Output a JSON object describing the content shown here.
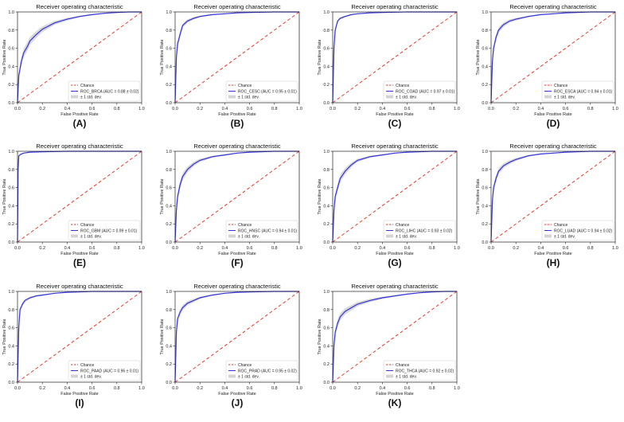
{
  "figure": {
    "panel_count": 11
  },
  "chart_data": [
    {
      "panel_label": "(A)",
      "type": "line",
      "title": "Receiver operating characteristic",
      "xlabel": "False Positive Rate",
      "ylabel": "True Positive Rate",
      "xlim": [
        0,
        1
      ],
      "ylim": [
        0,
        1
      ],
      "xticks": [
        "0.0",
        "0.2",
        "0.4",
        "0.6",
        "0.8",
        "1.0"
      ],
      "yticks": [
        "0.0",
        "0.2",
        "0.4",
        "0.6",
        "0.8",
        "1.0"
      ],
      "legend_position": "lower-right",
      "legend": [
        "Chance",
        "ROC_BRCA (AUC = 0.88 ± 0.02)",
        "± 1 std. dev."
      ],
      "colors": {
        "roc": "#3333dd",
        "chance": "#e63c2c",
        "band": "#d4d4d4"
      },
      "series": [
        {
          "name": "ROC_BRCA (AUC = 0.88 ± 0.02)",
          "x": [
            0,
            0.01,
            0.03,
            0.05,
            0.08,
            0.1,
            0.15,
            0.2,
            0.3,
            0.4,
            0.5,
            0.6,
            0.7,
            0.8,
            0.9,
            1
          ],
          "y": [
            0,
            0.3,
            0.45,
            0.55,
            0.62,
            0.68,
            0.75,
            0.81,
            0.88,
            0.92,
            0.95,
            0.97,
            0.985,
            0.995,
            1,
            1
          ]
        },
        {
          "name": "Chance",
          "x": [
            0,
            1
          ],
          "y": [
            0,
            1
          ]
        }
      ]
    },
    {
      "panel_label": "(B)",
      "type": "line",
      "title": "Receiver operating characteristic",
      "xlabel": "False Positive Rate",
      "ylabel": "True Positive Rate",
      "xlim": [
        0,
        1
      ],
      "ylim": [
        0,
        1
      ],
      "xticks": [
        "0.0",
        "0.2",
        "0.4",
        "0.6",
        "0.8",
        "1.0"
      ],
      "yticks": [
        "0.0",
        "0.2",
        "0.4",
        "0.6",
        "0.8",
        "1.0"
      ],
      "legend_position": "lower-right",
      "legend": [
        "Chance",
        "ROC_CESC (AUC = 0.95 ± 0.01)",
        "± 1 std. dev."
      ],
      "colors": {
        "roc": "#3333dd",
        "chance": "#e63c2c",
        "band": "#d4d4d4"
      },
      "series": [
        {
          "name": "ROC_CESC (AUC = 0.95 ± 0.01)",
          "x": [
            0,
            0.01,
            0.02,
            0.04,
            0.06,
            0.1,
            0.15,
            0.2,
            0.3,
            0.4,
            0.5,
            0.6,
            0.8,
            1
          ],
          "y": [
            0,
            0.5,
            0.65,
            0.75,
            0.85,
            0.9,
            0.93,
            0.95,
            0.97,
            0.98,
            0.99,
            0.995,
            1,
            1
          ]
        },
        {
          "name": "Chance",
          "x": [
            0,
            1
          ],
          "y": [
            0,
            1
          ]
        }
      ]
    },
    {
      "panel_label": "(C)",
      "type": "line",
      "title": "Receiver operating characteristic",
      "xlabel": "False Positive Rate",
      "ylabel": "True Positive Rate",
      "xlim": [
        0,
        1
      ],
      "ylim": [
        0,
        1
      ],
      "xticks": [
        "0.0",
        "0.2",
        "0.4",
        "0.6",
        "0.8",
        "1.0"
      ],
      "yticks": [
        "0.0",
        "0.2",
        "0.4",
        "0.6",
        "0.8",
        "1.0"
      ],
      "legend_position": "lower-right",
      "legend": [
        "Chance",
        "ROC_COAD (AUC = 0.97 ± 0.01)",
        "± 1 std. dev."
      ],
      "colors": {
        "roc": "#3333dd",
        "chance": "#e63c2c",
        "band": "#d4d4d4"
      },
      "series": [
        {
          "name": "ROC_COAD (AUC = 0.97 ± 0.01)",
          "x": [
            0,
            0.01,
            0.02,
            0.04,
            0.06,
            0.1,
            0.15,
            0.2,
            0.3,
            0.4,
            0.6,
            0.8,
            1
          ],
          "y": [
            0,
            0.6,
            0.8,
            0.9,
            0.93,
            0.95,
            0.97,
            0.98,
            0.99,
            0.995,
            1,
            1,
            1
          ]
        },
        {
          "name": "Chance",
          "x": [
            0,
            1
          ],
          "y": [
            0,
            1
          ]
        }
      ]
    },
    {
      "panel_label": "(D)",
      "type": "line",
      "title": "Receiver operating characteristic",
      "xlabel": "False Positive Rate",
      "ylabel": "True Positive Rate",
      "xlim": [
        0,
        1
      ],
      "ylim": [
        0,
        1
      ],
      "xticks": [
        "0.0",
        "0.2",
        "0.4",
        "0.6",
        "0.8",
        "1.0"
      ],
      "yticks": [
        "0.0",
        "0.2",
        "0.4",
        "0.6",
        "0.8",
        "1.0"
      ],
      "legend_position": "lower-right",
      "legend": [
        "Chance",
        "ROC_ESCA (AUC = 0.94 ± 0.01)",
        "± 1 std. dev."
      ],
      "colors": {
        "roc": "#3333dd",
        "chance": "#e63c2c",
        "band": "#d4d4d4"
      },
      "series": [
        {
          "name": "ROC_ESCA (AUC = 0.94 ± 0.01)",
          "x": [
            0,
            0.01,
            0.02,
            0.04,
            0.06,
            0.1,
            0.15,
            0.2,
            0.3,
            0.4,
            0.5,
            0.6,
            0.8,
            1
          ],
          "y": [
            0,
            0.45,
            0.6,
            0.72,
            0.8,
            0.86,
            0.9,
            0.92,
            0.95,
            0.97,
            0.98,
            0.99,
            1,
            1
          ]
        },
        {
          "name": "Chance",
          "x": [
            0,
            1
          ],
          "y": [
            0,
            1
          ]
        }
      ]
    },
    {
      "panel_label": "(E)",
      "type": "line",
      "title": "Receiver operating characteristic",
      "xlabel": "False Positive Rate",
      "ylabel": "True Positive Rate",
      "xlim": [
        0,
        1
      ],
      "ylim": [
        0,
        1
      ],
      "xticks": [
        "0.0",
        "0.2",
        "0.4",
        "0.6",
        "0.8",
        "1.0"
      ],
      "yticks": [
        "0.0",
        "0.2",
        "0.4",
        "0.6",
        "0.8",
        "1.0"
      ],
      "legend_position": "lower-right",
      "legend": [
        "Chance",
        "ROC_GBM (AUC = 0.99 ± 0.01)",
        "± 1 std. dev."
      ],
      "colors": {
        "roc": "#3333dd",
        "chance": "#e63c2c",
        "band": "#d4d4d4"
      },
      "series": [
        {
          "name": "ROC_GBM (AUC = 0.99 ± 0.01)",
          "x": [
            0,
            0.005,
            0.01,
            0.03,
            0.05,
            0.1,
            0.2,
            0.4,
            0.6,
            0.8,
            1
          ],
          "y": [
            0,
            0.8,
            0.95,
            0.97,
            0.98,
            0.99,
            0.995,
            1,
            1,
            1,
            1
          ]
        },
        {
          "name": "Chance",
          "x": [
            0,
            1
          ],
          "y": [
            0,
            1
          ]
        }
      ]
    },
    {
      "panel_label": "(F)",
      "type": "line",
      "title": "Receiver operating characteristic",
      "xlabel": "False Positive Rate",
      "ylabel": "True Positive Rate",
      "xlim": [
        0,
        1
      ],
      "ylim": [
        0,
        1
      ],
      "xticks": [
        "0.0",
        "0.2",
        "0.4",
        "0.6",
        "0.8",
        "1.0"
      ],
      "yticks": [
        "0.0",
        "0.2",
        "0.4",
        "0.6",
        "0.8",
        "1.0"
      ],
      "legend_position": "lower-right",
      "legend": [
        "Chance",
        "ROC_HNSC (AUC = 0.94 ± 0.01)",
        "± 1 std. dev."
      ],
      "colors": {
        "roc": "#3333dd",
        "chance": "#e63c2c",
        "band": "#d4d4d4"
      },
      "series": [
        {
          "name": "ROC_HNSC (AUC = 0.94 ± 0.01)",
          "x": [
            0,
            0.01,
            0.02,
            0.04,
            0.06,
            0.1,
            0.15,
            0.2,
            0.3,
            0.4,
            0.5,
            0.6,
            0.8,
            1
          ],
          "y": [
            0,
            0.35,
            0.5,
            0.63,
            0.72,
            0.8,
            0.86,
            0.9,
            0.94,
            0.96,
            0.98,
            0.99,
            1,
            1
          ]
        },
        {
          "name": "Chance",
          "x": [
            0,
            1
          ],
          "y": [
            0,
            1
          ]
        }
      ]
    },
    {
      "panel_label": "(G)",
      "type": "line",
      "title": "Receiver operating characteristic",
      "xlabel": "False Positive Rate",
      "ylabel": "True Positive Rate",
      "xlim": [
        0,
        1
      ],
      "ylim": [
        0,
        1
      ],
      "xticks": [
        "0.0",
        "0.2",
        "0.4",
        "0.6",
        "0.8",
        "1.0"
      ],
      "yticks": [
        "0.0",
        "0.2",
        "0.4",
        "0.6",
        "0.8",
        "1.0"
      ],
      "legend_position": "lower-right",
      "legend": [
        "Chance",
        "ROC_LIHC (AUC = 0.93 ± 0.02)",
        "± 1 std. dev."
      ],
      "colors": {
        "roc": "#3333dd",
        "chance": "#e63c2c",
        "band": "#d4d4d4"
      },
      "series": [
        {
          "name": "ROC_LIHC (AUC = 0.93 ± 0.02)",
          "x": [
            0,
            0.01,
            0.02,
            0.04,
            0.06,
            0.1,
            0.15,
            0.2,
            0.3,
            0.4,
            0.5,
            0.6,
            0.8,
            1
          ],
          "y": [
            0,
            0.35,
            0.5,
            0.6,
            0.7,
            0.78,
            0.85,
            0.9,
            0.94,
            0.96,
            0.98,
            0.99,
            1,
            1
          ]
        },
        {
          "name": "Chance",
          "x": [
            0,
            1
          ],
          "y": [
            0,
            1
          ]
        }
      ]
    },
    {
      "panel_label": "(H)",
      "type": "line",
      "title": "Receiver operating characteristic",
      "xlabel": "False Positive Rate",
      "ylabel": "True Positive Rate",
      "xlim": [
        0,
        1
      ],
      "ylim": [
        0,
        1
      ],
      "xticks": [
        "0.0",
        "0.2",
        "0.4",
        "0.6",
        "0.8",
        "1.0"
      ],
      "yticks": [
        "0.0",
        "0.2",
        "0.4",
        "0.6",
        "0.8",
        "1.0"
      ],
      "legend_position": "lower-right",
      "legend": [
        "Chance",
        "ROC_LUAD (AUC = 0.94 ± 0.02)",
        "± 1 std. dev."
      ],
      "colors": {
        "roc": "#3333dd",
        "chance": "#e63c2c",
        "band": "#d4d4d4"
      },
      "series": [
        {
          "name": "ROC_LUAD (AUC = 0.94 ± 0.02)",
          "x": [
            0,
            0.01,
            0.02,
            0.04,
            0.06,
            0.1,
            0.15,
            0.2,
            0.3,
            0.4,
            0.5,
            0.6,
            0.8,
            1
          ],
          "y": [
            0,
            0.45,
            0.6,
            0.7,
            0.78,
            0.84,
            0.88,
            0.91,
            0.95,
            0.97,
            0.98,
            0.99,
            1,
            1
          ]
        },
        {
          "name": "Chance",
          "x": [
            0,
            1
          ],
          "y": [
            0,
            1
          ]
        }
      ]
    },
    {
      "panel_label": "(I)",
      "type": "line",
      "title": "Receiver operating characteristic",
      "xlabel": "False Positive Rate",
      "ylabel": "True Positive Rate",
      "xlim": [
        0,
        1
      ],
      "ylim": [
        0,
        1
      ],
      "xticks": [
        "0.0",
        "0.2",
        "0.4",
        "0.6",
        "0.8",
        "1.0"
      ],
      "yticks": [
        "0.0",
        "0.2",
        "0.4",
        "0.6",
        "0.8",
        "1.0"
      ],
      "legend_position": "lower-right",
      "legend": [
        "Chance",
        "ROC_PAAD (AUC = 0.96 ± 0.01)",
        "± 1 std. dev."
      ],
      "colors": {
        "roc": "#3333dd",
        "chance": "#e63c2c",
        "band": "#d4d4d4"
      },
      "series": [
        {
          "name": "ROC_PAAD (AUC = 0.96 ± 0.01)",
          "x": [
            0,
            0.01,
            0.02,
            0.04,
            0.06,
            0.1,
            0.15,
            0.2,
            0.3,
            0.4,
            0.6,
            0.8,
            1
          ],
          "y": [
            0,
            0.6,
            0.8,
            0.86,
            0.9,
            0.93,
            0.95,
            0.96,
            0.98,
            0.99,
            1,
            1,
            1
          ]
        },
        {
          "name": "Chance",
          "x": [
            0,
            1
          ],
          "y": [
            0,
            1
          ]
        }
      ]
    },
    {
      "panel_label": "(J)",
      "type": "line",
      "title": "Receiver operating characteristic",
      "xlabel": "False Positive Rate",
      "ylabel": "True Positive Rate",
      "xlim": [
        0,
        1
      ],
      "ylim": [
        0,
        1
      ],
      "xticks": [
        "0.0",
        "0.2",
        "0.4",
        "0.6",
        "0.8",
        "1.0"
      ],
      "yticks": [
        "0.0",
        "0.2",
        "0.4",
        "0.6",
        "0.8",
        "1.0"
      ],
      "legend_position": "lower-right",
      "legend": [
        "Chance",
        "ROC_PRAD (AUC = 0.95 ± 0.02)",
        "± 1 std. dev."
      ],
      "colors": {
        "roc": "#3333dd",
        "chance": "#e63c2c",
        "band": "#d4d4d4"
      },
      "series": [
        {
          "name": "ROC_PRAD (AUC = 0.95 ± 0.02)",
          "x": [
            0,
            0.01,
            0.02,
            0.04,
            0.06,
            0.1,
            0.15,
            0.2,
            0.3,
            0.4,
            0.5,
            0.6,
            0.8,
            1
          ],
          "y": [
            0,
            0.55,
            0.7,
            0.77,
            0.82,
            0.87,
            0.9,
            0.93,
            0.96,
            0.98,
            0.99,
            0.995,
            1,
            1
          ]
        },
        {
          "name": "Chance",
          "x": [
            0,
            1
          ],
          "y": [
            0,
            1
          ]
        }
      ]
    },
    {
      "panel_label": "(K)",
      "type": "line",
      "title": "Receiver operating characteristic",
      "xlabel": "False Positive Rate",
      "ylabel": "True Positive Rate",
      "xlim": [
        0,
        1
      ],
      "ylim": [
        0,
        1
      ],
      "xticks": [
        "0.0",
        "0.2",
        "0.4",
        "0.6",
        "0.8",
        "1.0"
      ],
      "yticks": [
        "0.0",
        "0.2",
        "0.4",
        "0.6",
        "0.8",
        "1.0"
      ],
      "legend_position": "lower-right",
      "legend": [
        "Chance",
        "ROC_THCA (AUC = 0.92 ± 0.02)",
        "± 1 std. dev."
      ],
      "colors": {
        "roc": "#3333dd",
        "chance": "#e63c2c",
        "band": "#d4d4d4"
      },
      "series": [
        {
          "name": "ROC_THCA (AUC = 0.92 ± 0.02)",
          "x": [
            0,
            0.01,
            0.02,
            0.04,
            0.06,
            0.1,
            0.15,
            0.2,
            0.3,
            0.4,
            0.5,
            0.6,
            0.7,
            0.8,
            0.9,
            1
          ],
          "y": [
            0,
            0.4,
            0.55,
            0.65,
            0.72,
            0.78,
            0.82,
            0.86,
            0.9,
            0.93,
            0.95,
            0.97,
            0.985,
            0.995,
            1,
            1
          ]
        },
        {
          "name": "Chance",
          "x": [
            0,
            1
          ],
          "y": [
            0,
            1
          ]
        }
      ]
    }
  ]
}
